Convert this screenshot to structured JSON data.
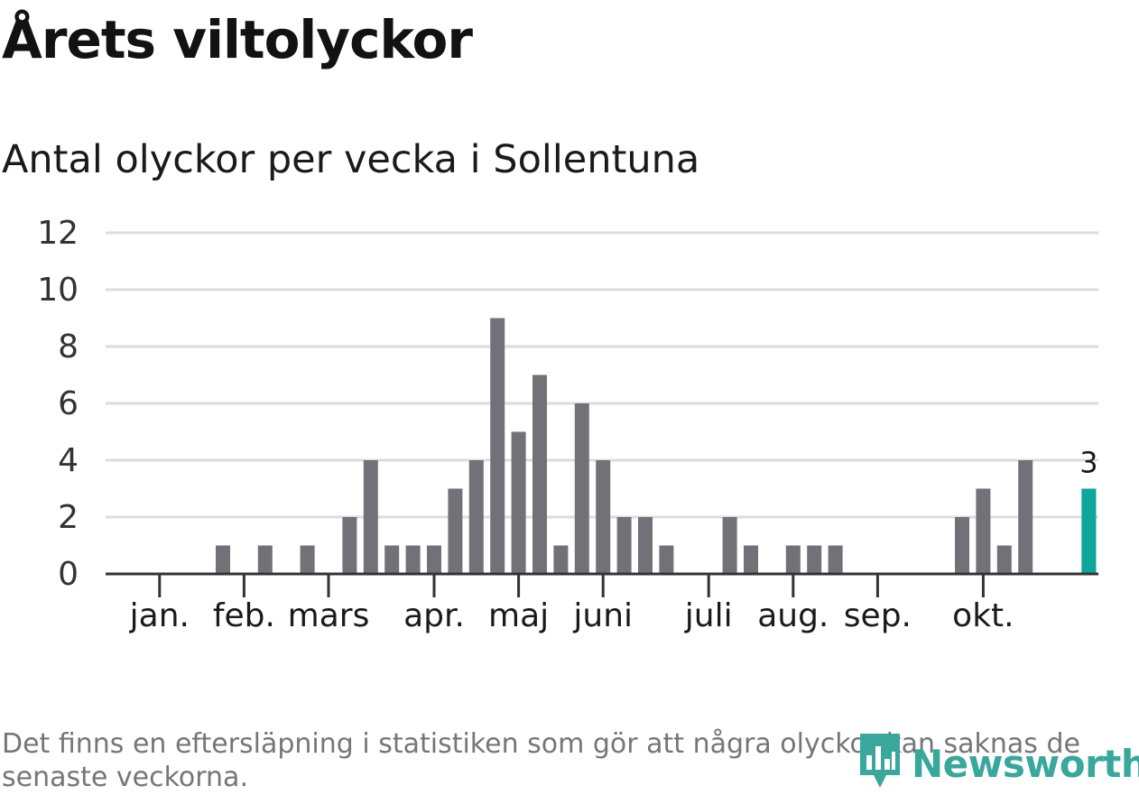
{
  "header": {
    "title": "Årets viltolyckor",
    "subtitle": "Antal olyckor per vecka i Sollentuna"
  },
  "footer": {
    "note": "Det finns en eftersläpning i statistiken som gör att några olyckor kan saknas de senaste veckorna.",
    "brand": "Newsworthy",
    "brand_icon": "newsworthy-logo-icon"
  },
  "colors": {
    "bar": "#727177",
    "highlight": "#0ea59a",
    "grid": "#dcdcdc",
    "axis": "#333333",
    "brand": "#3aa79c"
  },
  "chart_data": {
    "type": "bar",
    "title": "Antal olyckor per vecka i Sollentuna",
    "xlabel": "",
    "ylabel": "",
    "ylim": [
      0,
      12
    ],
    "yticks": [
      0,
      2,
      4,
      6,
      8,
      10,
      12
    ],
    "grid": true,
    "weeks": [
      1,
      2,
      3,
      4,
      5,
      6,
      7,
      8,
      9,
      10,
      11,
      12,
      13,
      14,
      15,
      16,
      17,
      18,
      19,
      20,
      21,
      22,
      23,
      24,
      25,
      26,
      27,
      28,
      29,
      30,
      31,
      32,
      33,
      34,
      35,
      36,
      37,
      38,
      39,
      40,
      41,
      42,
      43,
      44,
      45,
      46,
      47,
      48,
      49,
      50,
      51
    ],
    "values": [
      0,
      0,
      0,
      0,
      0,
      1,
      0,
      1,
      0,
      1,
      0,
      2,
      4,
      1,
      1,
      1,
      3,
      4,
      9,
      5,
      7,
      1,
      6,
      4,
      2,
      2,
      1,
      0,
      0,
      2,
      1,
      0,
      1,
      1,
      1,
      0,
      0,
      0,
      0,
      0,
      2,
      3,
      1,
      4,
      0,
      0,
      3,
      0,
      0,
      0,
      0
    ],
    "month_ticks": [
      {
        "label": "jan.",
        "week": 3
      },
      {
        "label": "feb.",
        "week": 7
      },
      {
        "label": "mars",
        "week": 11
      },
      {
        "label": "apr.",
        "week": 16
      },
      {
        "label": "maj",
        "week": 20
      },
      {
        "label": "juni",
        "week": 24
      },
      {
        "label": "juli",
        "week": 29
      },
      {
        "label": "aug.",
        "week": 33
      },
      {
        "label": "sep.",
        "week": 37
      },
      {
        "label": "okt.",
        "week": 42
      }
    ],
    "highlight": {
      "week": 47,
      "value": 3,
      "label": "3"
    }
  }
}
